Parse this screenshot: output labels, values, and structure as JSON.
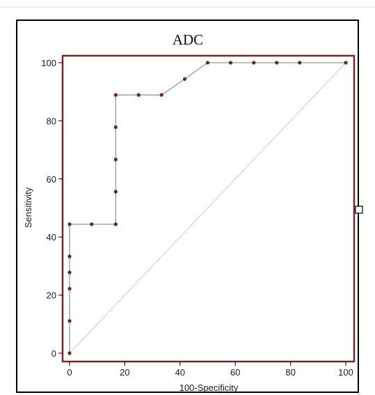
{
  "chart_data": {
    "type": "line",
    "title": "ADC",
    "xlabel": "100-Specificity",
    "ylabel": "Sensitivity",
    "xlim": [
      0,
      100
    ],
    "ylim": [
      0,
      100
    ],
    "xticks": [
      0,
      20,
      40,
      60,
      80,
      100
    ],
    "yticks": [
      0,
      20,
      40,
      60,
      80,
      100
    ],
    "grid": false,
    "series": [
      {
        "values": [
          [
            0,
            0
          ],
          [
            0,
            11.1
          ],
          [
            0,
            22.2
          ],
          [
            0,
            27.8
          ],
          [
            0,
            33.3
          ],
          [
            0,
            44.4
          ],
          [
            8,
            44.4
          ],
          [
            16.7,
            44.4
          ],
          [
            16.7,
            55.6
          ],
          [
            16.7,
            66.7
          ],
          [
            16.7,
            77.8
          ],
          [
            16.7,
            88.9
          ],
          [
            25,
            88.9
          ],
          [
            33.3,
            88.9
          ],
          [
            41.7,
            94.4
          ],
          [
            50,
            100
          ],
          [
            58.3,
            100
          ],
          [
            66.7,
            100
          ],
          [
            75,
            100
          ],
          [
            83.3,
            100
          ],
          [
            100,
            100
          ]
        ]
      }
    ],
    "reference_line": [
      [
        0,
        0
      ],
      [
        100,
        100
      ]
    ],
    "colors": {
      "plot_border": "#7a2424",
      "line": "#8899aa",
      "marker": "#7a1f1f",
      "diagonal": "#c8ccd2",
      "frame": "#000000"
    }
  }
}
